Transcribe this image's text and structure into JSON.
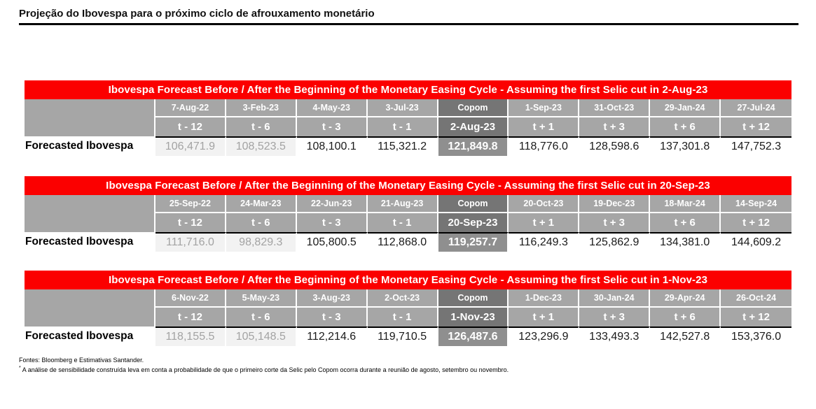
{
  "page": {
    "title": "Projeção do Ibovespa para o próximo ciclo de afrouxamento monetário"
  },
  "row_label": "Forecasted Ibovespa",
  "tables": [
    {
      "header": "Ibovespa Forecast Before / After the Beginning of the Monetary Easing Cycle - Assuming the first Selic cut in 2-Aug-23",
      "copom_date": "2-Aug-23",
      "columns": [
        {
          "date": "7-Aug-22",
          "t": "t - 12",
          "value": "106,471.9",
          "style": "muted"
        },
        {
          "date": "3-Feb-23",
          "t": "t - 6",
          "value": "108,523.5",
          "style": "muted"
        },
        {
          "date": "4-May-23",
          "t": "t - 3",
          "value": "108,100.1",
          "style": "normal"
        },
        {
          "date": "3-Jul-23",
          "t": "t - 1",
          "value": "115,321.2",
          "style": "normal"
        },
        {
          "date": "Copom",
          "t": "2-Aug-23",
          "value": "121,849.8",
          "style": "copom"
        },
        {
          "date": "1-Sep-23",
          "t": "t + 1",
          "value": "118,776.0",
          "style": "normal"
        },
        {
          "date": "31-Oct-23",
          "t": "t + 3",
          "value": "128,598.6",
          "style": "normal"
        },
        {
          "date": "29-Jan-24",
          "t": "t + 6",
          "value": "137,301.8",
          "style": "normal"
        },
        {
          "date": "27-Jul-24",
          "t": "t + 12",
          "value": "147,752.3",
          "style": "normal"
        }
      ]
    },
    {
      "header": "Ibovespa Forecast Before / After the Beginning of the Monetary Easing Cycle - Assuming the first Selic cut in 20-Sep-23",
      "copom_date": "20-Sep-23",
      "columns": [
        {
          "date": "25-Sep-22",
          "t": "t - 12",
          "value": "111,716.0",
          "style": "muted"
        },
        {
          "date": "24-Mar-23",
          "t": "t - 6",
          "value": "98,829.3",
          "style": "muted"
        },
        {
          "date": "22-Jun-23",
          "t": "t - 3",
          "value": "105,800.5",
          "style": "normal"
        },
        {
          "date": "21-Aug-23",
          "t": "t - 1",
          "value": "112,868.0",
          "style": "normal"
        },
        {
          "date": "Copom",
          "t": "20-Sep-23",
          "value": "119,257.7",
          "style": "copom"
        },
        {
          "date": "20-Oct-23",
          "t": "t + 1",
          "value": "116,249.3",
          "style": "normal"
        },
        {
          "date": "19-Dec-23",
          "t": "t + 3",
          "value": "125,862.9",
          "style": "normal"
        },
        {
          "date": "18-Mar-24",
          "t": "t + 6",
          "value": "134,381.0",
          "style": "normal"
        },
        {
          "date": "14-Sep-24",
          "t": "t + 12",
          "value": "144,609.2",
          "style": "normal"
        }
      ]
    },
    {
      "header": "Ibovespa Forecast Before / After the Beginning of the Monetary Easing Cycle - Assuming the first Selic cut in 1-Nov-23",
      "copom_date": "1-Nov-23",
      "columns": [
        {
          "date": "6-Nov-22",
          "t": "t - 12",
          "value": "118,155.5",
          "style": "muted"
        },
        {
          "date": "5-May-23",
          "t": "t - 6",
          "value": "105,148.5",
          "style": "muted"
        },
        {
          "date": "3-Aug-23",
          "t": "t - 3",
          "value": "112,214.6",
          "style": "normal"
        },
        {
          "date": "2-Oct-23",
          "t": "t - 1",
          "value": "119,710.5",
          "style": "normal"
        },
        {
          "date": "Copom",
          "t": "1-Nov-23",
          "value": "126,487.6",
          "style": "copom"
        },
        {
          "date": "1-Dec-23",
          "t": "t + 1",
          "value": "123,296.9",
          "style": "normal"
        },
        {
          "date": "30-Jan-24",
          "t": "t + 3",
          "value": "133,493.3",
          "style": "normal"
        },
        {
          "date": "29-Apr-24",
          "t": "t + 6",
          "value": "142,527.8",
          "style": "normal"
        },
        {
          "date": "26-Oct-24",
          "t": "t + 12",
          "value": "153,376.0",
          "style": "normal"
        }
      ]
    }
  ],
  "footer": {
    "line1": "Fontes: Bloomberg e Estimativas Santander.",
    "line2_marker": "*",
    "line2": "A análise de sensibilidade construída leva em conta a probabilidade de que o primeiro corte da Selic pelo Copom ocorra durante a reunião de agosto, setembro ou novembro."
  },
  "colors": {
    "header_red": "#fb0000",
    "row_gray": "#a6a6a6",
    "copom_header_gray": "#757575",
    "copom_value_gray": "#8f8f8f",
    "muted_bg": "#f2f2f2",
    "muted_text": "#a3a3a3"
  }
}
